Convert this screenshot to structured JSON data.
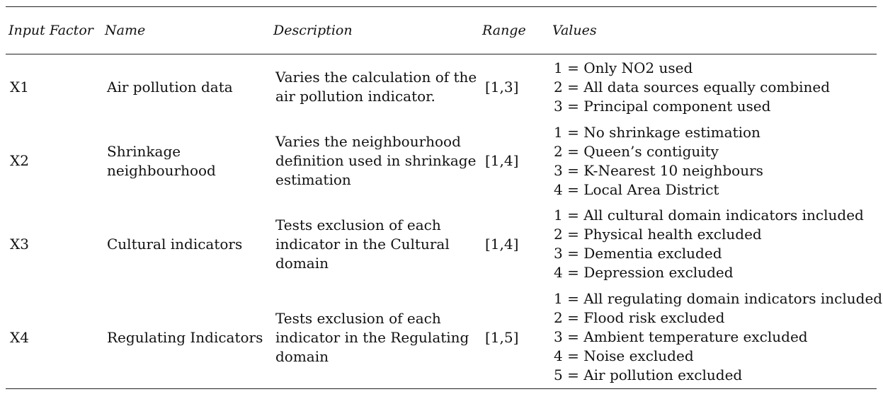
{
  "headers": {
    "input_factor": "Input Factor",
    "name": "Name",
    "description": "Description",
    "range": "Range",
    "values": "Values"
  },
  "rows": [
    {
      "factor": "X1",
      "name": [
        "Air pollution data"
      ],
      "description": [
        "Varies the calculation of the",
        "air pollution indicator."
      ],
      "range": "[1,3]",
      "values": [
        "1 = Only NO2 used",
        "2 = All data sources equally combined",
        "3 = Principal component used"
      ]
    },
    {
      "factor": "X2",
      "name": [
        "Shrinkage",
        "neighbourhood"
      ],
      "description": [
        "Varies the neighbourhood",
        "definition used in shrinkage",
        "estimation"
      ],
      "range": "[1,4]",
      "values": [
        "1 = No shrinkage estimation",
        "2 = Queen’s contiguity",
        "3 = K-Nearest 10 neighbours",
        "4 = Local Area District"
      ]
    },
    {
      "factor": "X3",
      "name": [
        "Cultural indicators"
      ],
      "description": [
        "Tests exclusion of each",
        "indicator in the Cultural",
        "domain"
      ],
      "range": "[1,4]",
      "values": [
        "1 = All cultural domain indicators included",
        "2 = Physical health excluded",
        "3 = Dementia excluded",
        "4 = Depression excluded"
      ]
    },
    {
      "factor": "X4",
      "name": [
        "Regulating Indicators"
      ],
      "description": [
        "Tests exclusion of each",
        "indicator in the Regulating",
        "domain"
      ],
      "range": "[1,5]",
      "values": [
        "1 = All regulating domain indicators included",
        "2 = Flood risk excluded",
        "3 = Ambient temperature excluded",
        "4 = Noise excluded",
        "5 = Air pollution excluded"
      ]
    }
  ]
}
